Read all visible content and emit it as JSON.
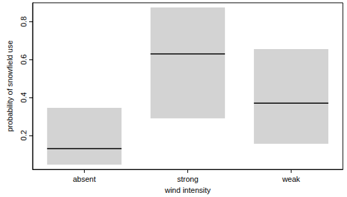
{
  "chart_data": {
    "type": "crossbar",
    "xlabel": "wind intensity",
    "ylabel": "probability of snowfield use",
    "categories": [
      "absent",
      "strong",
      "weak"
    ],
    "values": [
      0.13,
      0.63,
      0.37
    ],
    "lower": [
      0.045,
      0.29,
      0.155
    ],
    "upper": [
      0.345,
      0.875,
      0.655
    ],
    "color": "#d3d3d3",
    "ylim": [
      0.02,
      0.9
    ],
    "yticks": [
      0.2,
      0.4,
      0.6,
      0.8
    ],
    "grid": false
  }
}
